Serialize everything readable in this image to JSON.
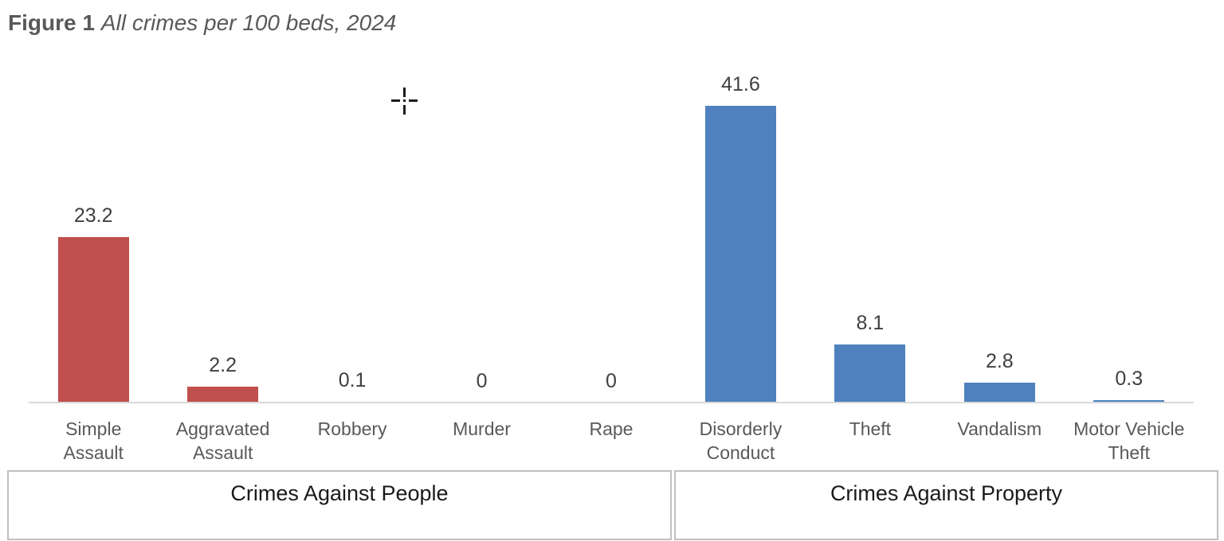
{
  "figure": {
    "label": "Figure 1",
    "title": "All crimes per 100 beds, 2024"
  },
  "chart_data": {
    "type": "bar",
    "title": "Figure 1 All crimes per 100 beds, 2024",
    "categories": [
      "Simple Assault",
      "Aggravated Assault",
      "Robbery",
      "Murder",
      "Rape",
      "Disorderly Conduct",
      "Theft",
      "Vandalism",
      "Motor Vehicle Theft"
    ],
    "values": [
      23.2,
      2.2,
      0.1,
      0,
      0,
      41.6,
      8.1,
      2.8,
      0.3
    ],
    "data_labels": [
      "23.2",
      "2.2",
      "0.1",
      "0",
      "0",
      "41.6",
      "8.1",
      "2.8",
      "0.3"
    ],
    "groups": [
      {
        "label": "Crimes Against People",
        "start": 0,
        "end": 4,
        "color": "#C0504D"
      },
      {
        "label": "Crimes Against Property",
        "start": 5,
        "end": 8,
        "color": "#4E81BD"
      }
    ],
    "xlabel": "",
    "ylabel": "",
    "ylim": [
      0,
      41.6
    ],
    "grid": false,
    "legend": "none",
    "data_labels_shown": true
  },
  "cursor": {
    "type": "precision-crosshair"
  },
  "colors": {
    "crimes_against_people": "#C0504D",
    "crimes_against_property": "#4E81BD",
    "axis_line": "#D9D9D9",
    "value_label_text": "#404040",
    "category_label_text": "#595959",
    "title_text": "#595959",
    "group_box_border": "#C0C0C0",
    "group_label_text": "#1a1a1a"
  }
}
